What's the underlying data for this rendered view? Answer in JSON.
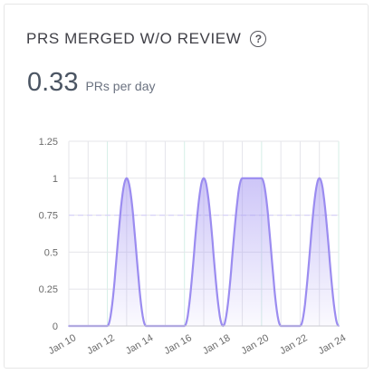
{
  "card": {
    "title": "PRS MERGED W/O REVIEW",
    "help_icon": "question-circle-icon",
    "metric_value": "0.33",
    "metric_unit": "PRs per day"
  },
  "colors": {
    "line": "#9b8cf0",
    "fill_top": "#a597f2",
    "grid": "#e5e5ea",
    "grid_alt": "#d6efe6",
    "axis": "#c9c9cf"
  },
  "chart_data": {
    "type": "area",
    "title": "",
    "xlabel": "",
    "ylabel": "",
    "ylim": [
      0,
      1.25
    ],
    "yticks": [
      0,
      0.25,
      0.5,
      0.75,
      1,
      1.25
    ],
    "ytick_labels": [
      "0",
      "0.25",
      "0.5",
      "0.75",
      "1",
      "1.25"
    ],
    "xticks": [
      "Jan 10",
      "Jan 12",
      "Jan 14",
      "Jan 16",
      "Jan 18",
      "Jan 20",
      "Jan 22",
      "Jan 24"
    ],
    "x": [
      "Jan 10",
      "Jan 11",
      "Jan 12",
      "Jan 13",
      "Jan 14",
      "Jan 15",
      "Jan 16",
      "Jan 17",
      "Jan 18",
      "Jan 19",
      "Jan 20",
      "Jan 21",
      "Jan 22",
      "Jan 23",
      "Jan 24"
    ],
    "series": [
      {
        "values": [
          0,
          0,
          0,
          1,
          0,
          0,
          0,
          1,
          0,
          1,
          1,
          0,
          0,
          1,
          0
        ]
      }
    ],
    "grid": true,
    "legend": "none"
  }
}
